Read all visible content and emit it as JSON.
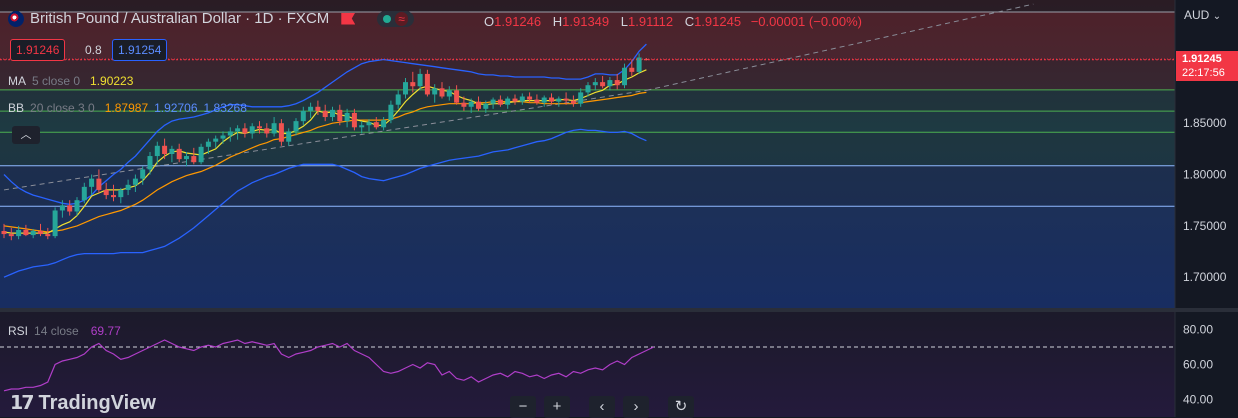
{
  "header": {
    "symbol_title": "British Pound / Australian Dollar · 1D · FXCM",
    "ohlc": {
      "o_label": "O",
      "o_value": "1.91246",
      "h_label": "H",
      "h_value": "1.91349",
      "l_label": "L",
      "l_value": "1.91112",
      "c_label": "C",
      "c_value": "1.91245",
      "change": "−0.00001 (−0.00%)"
    },
    "sell_price": "1.91246",
    "spread": "0.8",
    "buy_price": "1.91254",
    "currency": "AUD"
  },
  "indicators": {
    "ma": {
      "name": "MA",
      "params": "5 close 0",
      "value": "1.90223"
    },
    "bb": {
      "name": "BB",
      "params": "20 close 3 0",
      "basis": "1.87987",
      "upper": "1.92706",
      "lower": "1.83268"
    },
    "rsi": {
      "name": "RSI",
      "params": "14 close",
      "value": "69.77"
    },
    "collapse_icon": "chevron-up-icon"
  },
  "price_axis": {
    "ticks": [
      "1.85000",
      "1.80000",
      "1.75000",
      "1.70000"
    ],
    "last_price": "1.91245",
    "countdown": "22:17:56"
  },
  "rsi_axis": {
    "ticks": [
      "80.00",
      "60.00",
      "40.00"
    ]
  },
  "footer": {
    "brand": "TradingView"
  },
  "controls": [
    "zoom-out-button",
    "zoom-in-button",
    "scroll-left-button",
    "scroll-right-button",
    "reset-button"
  ],
  "colors": {
    "up": "#26a69a",
    "down": "#ef5350",
    "ma": "#f0e130",
    "bb_basis": "#ff9800",
    "bb_band": "#2962ff",
    "rsi": "#b03ec9",
    "last_price": "#f23645"
  },
  "chart_data": {
    "type": "candlestick",
    "x_unit": "daily bars",
    "ylim": [
      1.67,
      1.97
    ],
    "candles": [
      {
        "o": 1.745,
        "h": 1.752,
        "l": 1.738,
        "c": 1.742
      },
      {
        "o": 1.742,
        "h": 1.748,
        "l": 1.736,
        "c": 1.74
      },
      {
        "o": 1.74,
        "h": 1.75,
        "l": 1.737,
        "c": 1.746
      },
      {
        "o": 1.746,
        "h": 1.751,
        "l": 1.74,
        "c": 1.741
      },
      {
        "o": 1.741,
        "h": 1.747,
        "l": 1.738,
        "c": 1.745
      },
      {
        "o": 1.745,
        "h": 1.752,
        "l": 1.74,
        "c": 1.742
      },
      {
        "o": 1.742,
        "h": 1.748,
        "l": 1.737,
        "c": 1.74
      },
      {
        "o": 1.74,
        "h": 1.768,
        "l": 1.738,
        "c": 1.765
      },
      {
        "o": 1.765,
        "h": 1.775,
        "l": 1.758,
        "c": 1.77
      },
      {
        "o": 1.77,
        "h": 1.775,
        "l": 1.76,
        "c": 1.764
      },
      {
        "o": 1.764,
        "h": 1.778,
        "l": 1.76,
        "c": 1.775
      },
      {
        "o": 1.775,
        "h": 1.792,
        "l": 1.772,
        "c": 1.788
      },
      {
        "o": 1.788,
        "h": 1.8,
        "l": 1.78,
        "c": 1.796
      },
      {
        "o": 1.796,
        "h": 1.805,
        "l": 1.782,
        "c": 1.785
      },
      {
        "o": 1.785,
        "h": 1.792,
        "l": 1.776,
        "c": 1.78
      },
      {
        "o": 1.78,
        "h": 1.79,
        "l": 1.774,
        "c": 1.778
      },
      {
        "o": 1.778,
        "h": 1.787,
        "l": 1.772,
        "c": 1.785
      },
      {
        "o": 1.785,
        "h": 1.795,
        "l": 1.78,
        "c": 1.79
      },
      {
        "o": 1.79,
        "h": 1.8,
        "l": 1.783,
        "c": 1.796
      },
      {
        "o": 1.796,
        "h": 1.808,
        "l": 1.79,
        "c": 1.805
      },
      {
        "o": 1.805,
        "h": 1.822,
        "l": 1.8,
        "c": 1.818
      },
      {
        "o": 1.818,
        "h": 1.832,
        "l": 1.81,
        "c": 1.828
      },
      {
        "o": 1.828,
        "h": 1.835,
        "l": 1.815,
        "c": 1.82
      },
      {
        "o": 1.82,
        "h": 1.828,
        "l": 1.812,
        "c": 1.825
      },
      {
        "o": 1.825,
        "h": 1.83,
        "l": 1.812,
        "c": 1.815
      },
      {
        "o": 1.815,
        "h": 1.822,
        "l": 1.808,
        "c": 1.818
      },
      {
        "o": 1.818,
        "h": 1.826,
        "l": 1.81,
        "c": 1.812
      },
      {
        "o": 1.812,
        "h": 1.83,
        "l": 1.81,
        "c": 1.827
      },
      {
        "o": 1.827,
        "h": 1.835,
        "l": 1.82,
        "c": 1.832
      },
      {
        "o": 1.832,
        "h": 1.838,
        "l": 1.826,
        "c": 1.835
      },
      {
        "o": 1.835,
        "h": 1.842,
        "l": 1.83,
        "c": 1.838
      },
      {
        "o": 1.838,
        "h": 1.846,
        "l": 1.832,
        "c": 1.842
      },
      {
        "o": 1.842,
        "h": 1.848,
        "l": 1.834,
        "c": 1.845
      },
      {
        "o": 1.845,
        "h": 1.85,
        "l": 1.836,
        "c": 1.84
      },
      {
        "o": 1.84,
        "h": 1.85,
        "l": 1.835,
        "c": 1.847
      },
      {
        "o": 1.847,
        "h": 1.852,
        "l": 1.84,
        "c": 1.845
      },
      {
        "o": 1.845,
        "h": 1.85,
        "l": 1.836,
        "c": 1.84
      },
      {
        "o": 1.84,
        "h": 1.856,
        "l": 1.837,
        "c": 1.85
      },
      {
        "o": 1.85,
        "h": 1.854,
        "l": 1.828,
        "c": 1.832
      },
      {
        "o": 1.832,
        "h": 1.845,
        "l": 1.828,
        "c": 1.842
      },
      {
        "o": 1.842,
        "h": 1.855,
        "l": 1.838,
        "c": 1.852
      },
      {
        "o": 1.852,
        "h": 1.866,
        "l": 1.848,
        "c": 1.862
      },
      {
        "o": 1.862,
        "h": 1.87,
        "l": 1.855,
        "c": 1.866
      },
      {
        "o": 1.866,
        "h": 1.872,
        "l": 1.858,
        "c": 1.862
      },
      {
        "o": 1.862,
        "h": 1.868,
        "l": 1.852,
        "c": 1.856
      },
      {
        "o": 1.856,
        "h": 1.866,
        "l": 1.852,
        "c": 1.863
      },
      {
        "o": 1.863,
        "h": 1.868,
        "l": 1.848,
        "c": 1.852
      },
      {
        "o": 1.852,
        "h": 1.864,
        "l": 1.846,
        "c": 1.86
      },
      {
        "o": 1.86,
        "h": 1.864,
        "l": 1.843,
        "c": 1.846
      },
      {
        "o": 1.846,
        "h": 1.852,
        "l": 1.84,
        "c": 1.848
      },
      {
        "o": 1.848,
        "h": 1.854,
        "l": 1.842,
        "c": 1.851
      },
      {
        "o": 1.851,
        "h": 1.856,
        "l": 1.844,
        "c": 1.846
      },
      {
        "o": 1.846,
        "h": 1.856,
        "l": 1.843,
        "c": 1.853
      },
      {
        "o": 1.853,
        "h": 1.872,
        "l": 1.85,
        "c": 1.868
      },
      {
        "o": 1.868,
        "h": 1.882,
        "l": 1.864,
        "c": 1.878
      },
      {
        "o": 1.878,
        "h": 1.894,
        "l": 1.874,
        "c": 1.89
      },
      {
        "o": 1.89,
        "h": 1.9,
        "l": 1.88,
        "c": 1.886
      },
      {
        "o": 1.886,
        "h": 1.903,
        "l": 1.882,
        "c": 1.898
      },
      {
        "o": 1.898,
        "h": 1.902,
        "l": 1.876,
        "c": 1.878
      },
      {
        "o": 1.878,
        "h": 1.888,
        "l": 1.87,
        "c": 1.884
      },
      {
        "o": 1.884,
        "h": 1.89,
        "l": 1.874,
        "c": 1.876
      },
      {
        "o": 1.876,
        "h": 1.886,
        "l": 1.872,
        "c": 1.882
      },
      {
        "o": 1.882,
        "h": 1.887,
        "l": 1.868,
        "c": 1.87
      },
      {
        "o": 1.87,
        "h": 1.876,
        "l": 1.862,
        "c": 1.866
      },
      {
        "o": 1.866,
        "h": 1.874,
        "l": 1.86,
        "c": 1.871
      },
      {
        "o": 1.871,
        "h": 1.876,
        "l": 1.862,
        "c": 1.864
      },
      {
        "o": 1.864,
        "h": 1.872,
        "l": 1.86,
        "c": 1.869
      },
      {
        "o": 1.869,
        "h": 1.875,
        "l": 1.864,
        "c": 1.873
      },
      {
        "o": 1.873,
        "h": 1.877,
        "l": 1.866,
        "c": 1.868
      },
      {
        "o": 1.868,
        "h": 1.876,
        "l": 1.864,
        "c": 1.874
      },
      {
        "o": 1.874,
        "h": 1.878,
        "l": 1.868,
        "c": 1.871
      },
      {
        "o": 1.871,
        "h": 1.879,
        "l": 1.868,
        "c": 1.876
      },
      {
        "o": 1.876,
        "h": 1.88,
        "l": 1.87,
        "c": 1.873
      },
      {
        "o": 1.873,
        "h": 1.878,
        "l": 1.868,
        "c": 1.87
      },
      {
        "o": 1.87,
        "h": 1.877,
        "l": 1.866,
        "c": 1.875
      },
      {
        "o": 1.875,
        "h": 1.879,
        "l": 1.868,
        "c": 1.871
      },
      {
        "o": 1.871,
        "h": 1.876,
        "l": 1.866,
        "c": 1.874
      },
      {
        "o": 1.874,
        "h": 1.88,
        "l": 1.868,
        "c": 1.872
      },
      {
        "o": 1.872,
        "h": 1.877,
        "l": 1.866,
        "c": 1.869
      },
      {
        "o": 1.869,
        "h": 1.884,
        "l": 1.866,
        "c": 1.88
      },
      {
        "o": 1.88,
        "h": 1.89,
        "l": 1.876,
        "c": 1.887
      },
      {
        "o": 1.887,
        "h": 1.894,
        "l": 1.882,
        "c": 1.89
      },
      {
        "o": 1.89,
        "h": 1.896,
        "l": 1.884,
        "c": 1.886
      },
      {
        "o": 1.886,
        "h": 1.895,
        "l": 1.882,
        "c": 1.892
      },
      {
        "o": 1.892,
        "h": 1.898,
        "l": 1.883,
        "c": 1.887
      },
      {
        "o": 1.887,
        "h": 1.908,
        "l": 1.884,
        "c": 1.904
      },
      {
        "o": 1.904,
        "h": 1.912,
        "l": 1.896,
        "c": 1.9
      },
      {
        "o": 1.9,
        "h": 1.918,
        "l": 1.898,
        "c": 1.914
      },
      {
        "o": 1.91246,
        "h": 1.91349,
        "l": 1.91112,
        "c": 1.91245
      }
    ],
    "ma5": [
      1.744,
      1.743,
      1.743,
      1.743,
      1.743,
      1.743,
      1.743,
      1.747,
      1.751,
      1.754,
      1.76,
      1.769,
      1.779,
      1.782,
      1.785,
      1.785,
      1.785,
      1.787,
      1.789,
      1.794,
      1.802,
      1.812,
      1.818,
      1.822,
      1.823,
      1.821,
      1.82,
      1.819,
      1.822,
      1.825,
      1.832,
      1.837,
      1.841,
      1.84,
      1.842,
      1.844,
      1.843,
      1.844,
      1.84,
      1.84,
      1.843,
      1.847,
      1.853,
      1.862,
      1.86,
      1.861,
      1.858,
      1.857,
      1.854,
      1.852,
      1.851,
      1.848,
      1.848,
      1.854,
      1.862,
      1.871,
      1.878,
      1.884,
      1.886,
      1.884,
      1.882,
      1.881,
      1.877,
      1.874,
      1.872,
      1.869,
      1.868,
      1.869,
      1.869,
      1.87,
      1.871,
      1.872,
      1.872,
      1.872,
      1.872,
      1.872,
      1.873,
      1.873,
      1.872,
      1.874,
      1.877,
      1.88,
      1.882,
      1.887,
      1.888,
      1.892,
      1.895,
      1.899,
      1.902
    ],
    "bb_basis": [
      1.75,
      1.749,
      1.748,
      1.747,
      1.746,
      1.745,
      1.744,
      1.745,
      1.746,
      1.748,
      1.75,
      1.753,
      1.756,
      1.759,
      1.761,
      1.763,
      1.765,
      1.768,
      1.771,
      1.775,
      1.78,
      1.785,
      1.789,
      1.793,
      1.796,
      1.799,
      1.801,
      1.803,
      1.806,
      1.809,
      1.813,
      1.817,
      1.82,
      1.823,
      1.826,
      1.829,
      1.831,
      1.834,
      1.835,
      1.837,
      1.839,
      1.841,
      1.843,
      1.846,
      1.848,
      1.85,
      1.851,
      1.852,
      1.853,
      1.853,
      1.853,
      1.853,
      1.853,
      1.854,
      1.856,
      1.859,
      1.861,
      1.864,
      1.866,
      1.867,
      1.868,
      1.869,
      1.869,
      1.869,
      1.869,
      1.87,
      1.87,
      1.871,
      1.871,
      1.871,
      1.871,
      1.871,
      1.87,
      1.87,
      1.869,
      1.869,
      1.869,
      1.869,
      1.869,
      1.87,
      1.871,
      1.872,
      1.873,
      1.874,
      1.875,
      1.876,
      1.877,
      1.879,
      1.88
    ],
    "bb_upper": [
      1.8,
      1.793,
      1.787,
      1.783,
      1.78,
      1.778,
      1.776,
      1.774,
      1.772,
      1.771,
      1.772,
      1.775,
      1.78,
      1.788,
      1.794,
      1.8,
      1.805,
      1.812,
      1.818,
      1.826,
      1.834,
      1.842,
      1.848,
      1.852,
      1.854,
      1.855,
      1.856,
      1.858,
      1.86,
      1.863,
      1.866,
      1.868,
      1.868,
      1.867,
      1.866,
      1.866,
      1.866,
      1.866,
      1.866,
      1.867,
      1.869,
      1.872,
      1.876,
      1.88,
      1.885,
      1.89,
      1.895,
      1.9,
      1.904,
      1.908,
      1.91,
      1.911,
      1.912,
      1.911,
      1.91,
      1.909,
      1.908,
      1.907,
      1.906,
      1.905,
      1.904,
      1.903,
      1.902,
      1.901,
      1.9,
      1.898,
      1.897,
      1.897,
      1.896,
      1.896,
      1.895,
      1.895,
      1.895,
      1.895,
      1.895,
      1.894,
      1.894,
      1.893,
      1.893,
      1.893,
      1.895,
      1.898,
      1.898,
      1.897,
      1.897,
      1.902,
      1.91,
      1.92,
      1.927
    ],
    "bb_lower": [
      1.7,
      1.703,
      1.706,
      1.708,
      1.71,
      1.711,
      1.712,
      1.714,
      1.717,
      1.72,
      1.722,
      1.723,
      1.723,
      1.723,
      1.723,
      1.723,
      1.724,
      1.724,
      1.724,
      1.724,
      1.726,
      1.728,
      1.73,
      1.734,
      1.738,
      1.743,
      1.748,
      1.754,
      1.76,
      1.766,
      1.772,
      1.778,
      1.784,
      1.788,
      1.792,
      1.795,
      1.798,
      1.8,
      1.803,
      1.806,
      1.808,
      1.81,
      1.81,
      1.81,
      1.81,
      1.81,
      1.808,
      1.805,
      1.802,
      1.798,
      1.796,
      1.795,
      1.794,
      1.796,
      1.798,
      1.8,
      1.803,
      1.806,
      1.808,
      1.81,
      1.812,
      1.814,
      1.815,
      1.816,
      1.817,
      1.818,
      1.82,
      1.822,
      1.823,
      1.824,
      1.826,
      1.828,
      1.83,
      1.832,
      1.833,
      1.835,
      1.838,
      1.841,
      1.843,
      1.844,
      1.843,
      1.843,
      1.842,
      1.841,
      1.841,
      1.842,
      1.84,
      1.836,
      1.833
    ],
    "rsi14": [
      45,
      46,
      46,
      47,
      47,
      48,
      50,
      60,
      62,
      63,
      64,
      66,
      70,
      72,
      68,
      66,
      63,
      64,
      66,
      68,
      70,
      72,
      74,
      72,
      70,
      69,
      68,
      70,
      71,
      70,
      72,
      73,
      74,
      72,
      73,
      72,
      71,
      72,
      66,
      64,
      66,
      67,
      68,
      70,
      71,
      72,
      70,
      72,
      68,
      66,
      64,
      60,
      56,
      55,
      56,
      58,
      60,
      58,
      61,
      60,
      54,
      56,
      52,
      51,
      53,
      50,
      52,
      54,
      55,
      53,
      56,
      55,
      53,
      54,
      52,
      54,
      55,
      53,
      56,
      55,
      57,
      58,
      57,
      60,
      62,
      60,
      64,
      66,
      68,
      70
    ],
    "price_levels": [
      1.9118,
      1.8824,
      1.8618,
      1.8412,
      1.8086,
      1.7691
    ],
    "trendlines": [
      {
        "x0": 0,
        "y0": 1.785,
        "x1": 88,
        "y1": 1.882
      },
      {
        "x0": 88,
        "y0": 1.882,
        "x1": 141,
        "y1": 1.966
      }
    ],
    "rsi_ylim": [
      30,
      90
    ],
    "rsi_overbought": 70,
    "price_ticks": [
      1.85,
      1.8,
      1.75,
      1.7
    ],
    "rsi_ticks": [
      80,
      60,
      40
    ]
  }
}
